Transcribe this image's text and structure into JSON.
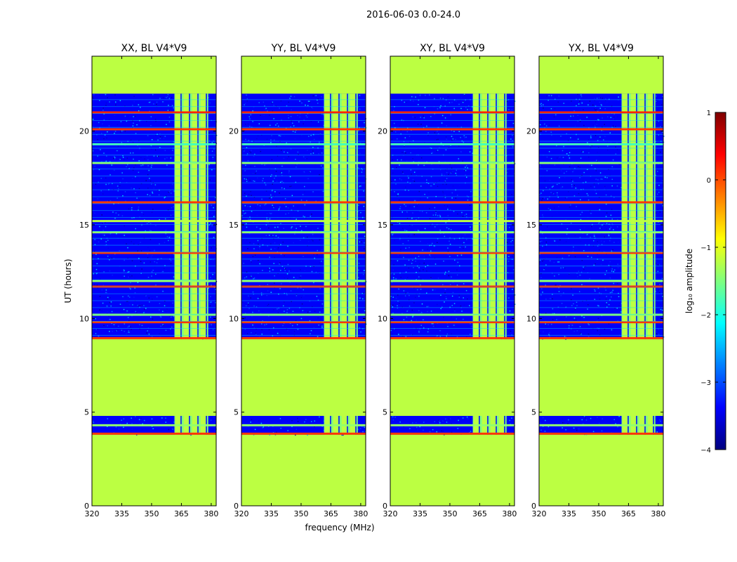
{
  "figure_title": "2016-06-03 0.0-24.0",
  "chart_data": {
    "type": "heatmap",
    "title": "2016-06-03 0.0-24.0",
    "xlabel": "frequency (MHz)",
    "ylabel": "UT (hours)",
    "xlim": [
      320,
      382.5
    ],
    "ylim": [
      0,
      24
    ],
    "x_ticks": [
      320,
      335,
      350,
      365,
      380
    ],
    "y_ticks": [
      0,
      5,
      10,
      15,
      20
    ],
    "colorbar": {
      "label": "log₁₀ amplitude",
      "range": [
        -4,
        1
      ],
      "ticks": [
        1,
        0,
        -1,
        -2,
        -3,
        -4
      ],
      "colormap": "jet",
      "colors": [
        "#00007f",
        "#0000ff",
        "#007fff",
        "#00ffff",
        "#7fff7f",
        "#ffff00",
        "#ff7f00",
        "#ff0000",
        "#7f0000"
      ]
    },
    "panels": [
      {
        "title": "XX, BL V4*V9"
      },
      {
        "title": "YY, BL V4*V9"
      },
      {
        "title": "XY, BL V4*V9"
      },
      {
        "title": "YX, BL V4*V9"
      }
    ],
    "flagged_fill_value": -1.2,
    "noise_floor_value": -3.4,
    "rfi_band_mhz": [
      361.5,
      378.5
    ],
    "rfi_band_value": -1.5,
    "observing_segments_hours": [
      [
        3.8,
        4.8
      ],
      [
        8.9,
        22.0
      ]
    ],
    "no_data_hours": [
      [
        0,
        3.8
      ],
      [
        4.8,
        8.9
      ],
      [
        22.0,
        24.0
      ]
    ],
    "flag_lines_hours": [
      {
        "t": 3.85,
        "value": 0.1
      },
      {
        "t": 8.95,
        "value": 0.1
      },
      {
        "t": 9.8,
        "value": 0.1
      },
      {
        "t": 11.7,
        "value": 0.2
      },
      {
        "t": 13.5,
        "value": 0.1
      },
      {
        "t": 16.2,
        "value": 0.1
      },
      {
        "t": 20.1,
        "value": 0.1
      },
      {
        "t": 21.0,
        "value": 0.2
      },
      {
        "t": 10.2,
        "value": -1.4
      },
      {
        "t": 12.0,
        "value": -1.4
      },
      {
        "t": 14.6,
        "value": -1.4
      },
      {
        "t": 15.2,
        "value": -1.2
      },
      {
        "t": 18.3,
        "value": -1.4
      },
      {
        "t": 19.3,
        "value": -1.8
      },
      {
        "t": 4.3,
        "value": -1.4
      }
    ]
  }
}
